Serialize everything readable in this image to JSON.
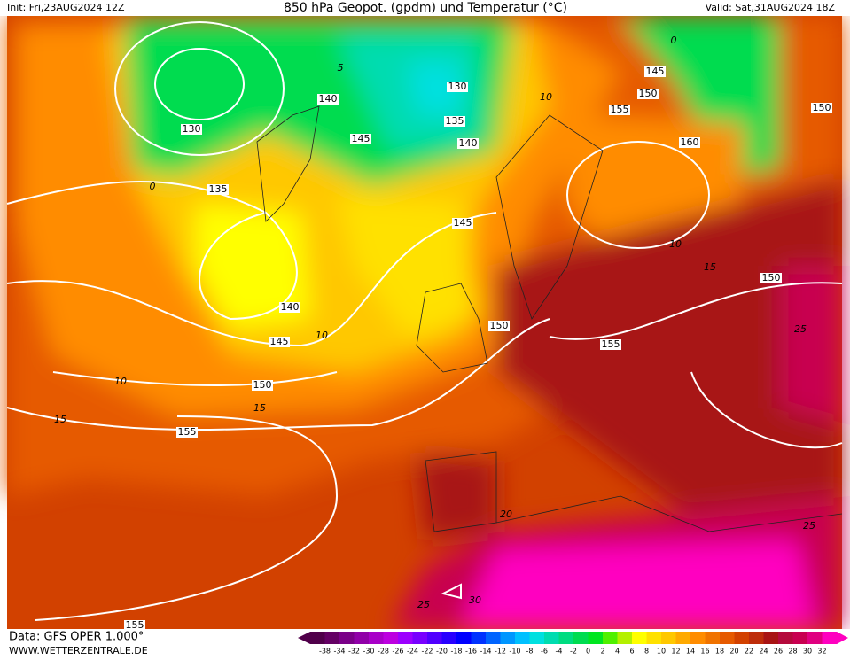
{
  "header": {
    "init": "Init: Fri,23AUG2024 12Z",
    "title": "850 hPa Geopot. (gpdm) und Temperatur (°C)",
    "valid": "Valid: Sat,31AUG2024 18Z"
  },
  "footer": {
    "data": "Data: GFS OPER 1.000°",
    "site": "WWW.WETTERZENTRALE.DE"
  },
  "geopotential_labels": [
    130,
    135,
    140,
    145,
    140,
    145,
    150,
    155,
    135,
    140,
    130,
    145,
    150,
    155,
    160,
    150,
    145,
    150,
    155,
    150,
    155
  ],
  "temperature_labels": [
    10,
    0,
    10,
    15,
    10,
    10,
    15,
    15,
    20,
    25,
    25,
    30,
    25,
    0,
    5
  ],
  "colorbar": {
    "ticks": [
      -38,
      -34,
      -32,
      -30,
      -28,
      -26,
      -24,
      -22,
      -20,
      -18,
      -16,
      -14,
      -12,
      -10,
      -8,
      -6,
      -4,
      -2,
      0,
      2,
      4,
      6,
      8,
      10,
      12,
      14,
      16,
      18,
      20,
      22,
      24,
      26,
      28,
      30,
      32
    ],
    "colors": [
      "#50004a",
      "#640064",
      "#7a0088",
      "#9000a8",
      "#a800c8",
      "#bc00e0",
      "#9c00ff",
      "#7800ff",
      "#5000ff",
      "#2800ff",
      "#0000ff",
      "#0032ff",
      "#0064ff",
      "#0096ff",
      "#00c0ff",
      "#00e0e0",
      "#00dcb0",
      "#00dc80",
      "#00dc50",
      "#00e620",
      "#50f000",
      "#b4f000",
      "#ffff00",
      "#ffe100",
      "#ffc800",
      "#ffaa00",
      "#ff8c00",
      "#f07300",
      "#e65a00",
      "#d24100",
      "#be2d0a",
      "#a81414",
      "#b40a3c",
      "#c80050",
      "#e00080",
      "#ff00c0"
    ]
  }
}
